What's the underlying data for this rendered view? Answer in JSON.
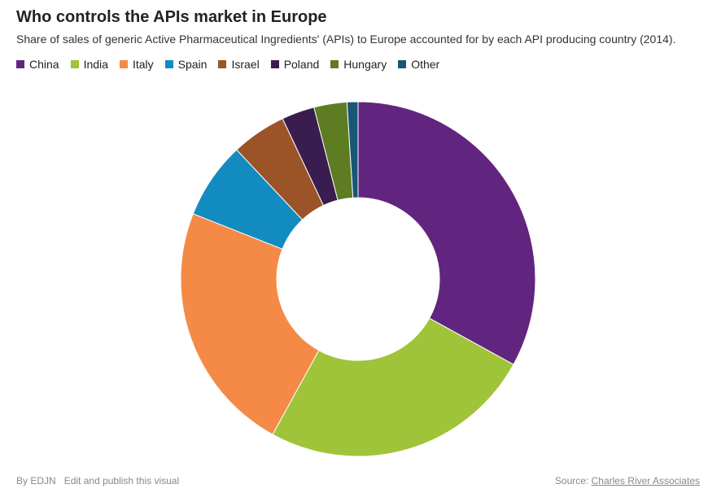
{
  "chart_data": {
    "type": "donut",
    "title": "Who controls the APIs market in Europe",
    "subtitle": "Share of sales of generic Active Pharmaceutical Ingredients' (APIs) to Europe accounted for by each API producing country (2014).",
    "categories": [
      "China",
      "India",
      "Italy",
      "Spain",
      "Israel",
      "Poland",
      "Hungary",
      "Other"
    ],
    "values": [
      33,
      25,
      23,
      7,
      5,
      3,
      3,
      1
    ],
    "colors": [
      "#62257f",
      "#9fc43a",
      "#f48a46",
      "#128cc0",
      "#9a5428",
      "#3a1d4f",
      "#5e7c22",
      "#1a5674"
    ]
  },
  "footer": {
    "byline": "By EDJN",
    "edit_link": "Edit and publish this visual",
    "source_label": "Source:",
    "source": "Charles River Associates"
  }
}
